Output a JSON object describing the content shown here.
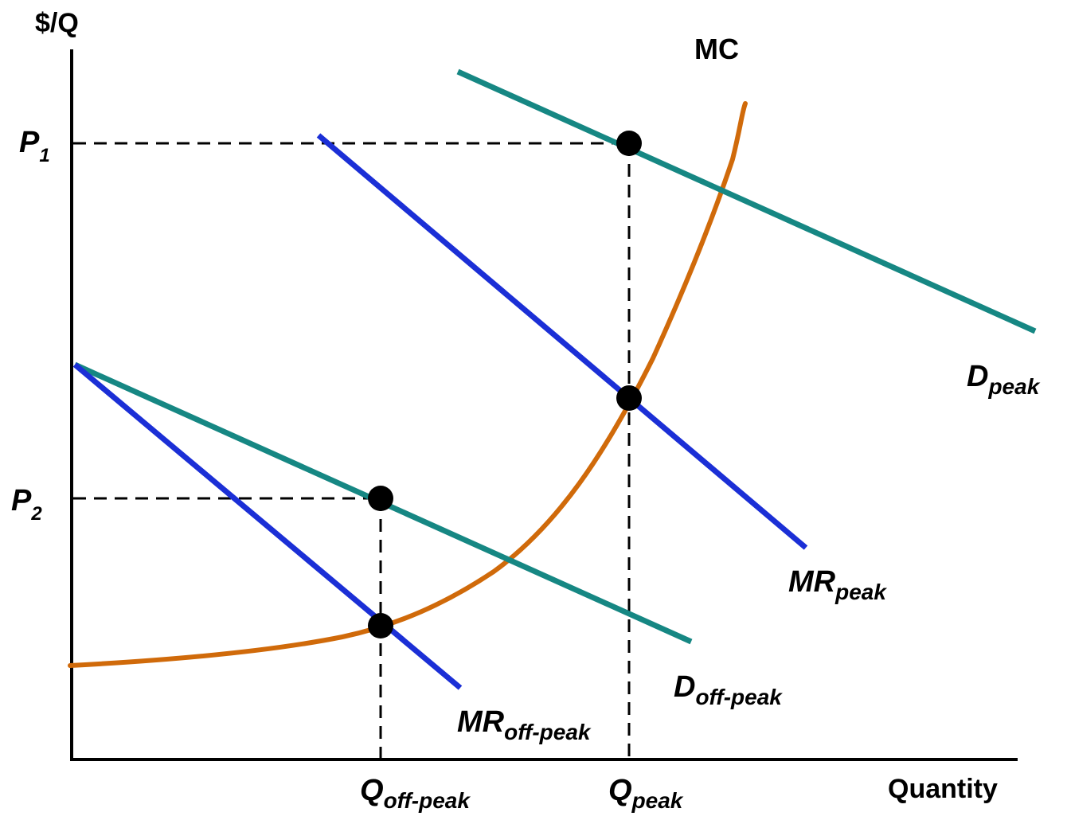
{
  "labels": {
    "y_axis": "$/Q",
    "x_axis": "Quantity",
    "mc": "MC",
    "p1_main": "P",
    "p1_sub": "1",
    "p2_main": "P",
    "p2_sub": "2",
    "q_offpeak_main": "Q",
    "q_offpeak_sub": "off-peak",
    "q_peak_main": "Q",
    "q_peak_sub": "peak",
    "d_peak_main": "D",
    "d_peak_sub": "peak",
    "mr_peak_main": "MR",
    "mr_peak_sub": "peak",
    "d_offpeak_main": "D",
    "d_offpeak_sub": "off-peak",
    "mr_offpeak_main": "MR",
    "mr_offpeak_sub": "off-peak"
  },
  "colors": {
    "demand": "#168783",
    "marginal_revenue": "#1b2fd6",
    "marginal_cost": "#d06a0a",
    "axis": "#000000",
    "points": "#000000"
  }
}
